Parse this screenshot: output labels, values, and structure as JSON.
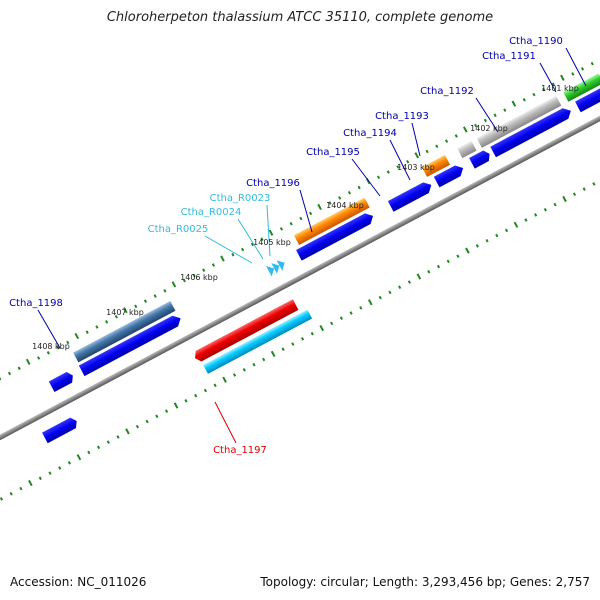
{
  "title": "Chloroherpeton thalassium ATCC 35110, complete genome",
  "footer": {
    "accession": "Accession: NC_011026",
    "summary": "Topology: circular; Length: 3,293,456 bp; Genes: 2,757"
  },
  "ticks": [
    {
      "label": "1401 kbp"
    },
    {
      "label": "1402 kbp"
    },
    {
      "label": "1403 kbp"
    },
    {
      "label": "1404 kbp"
    },
    {
      "label": "1405 kbp"
    },
    {
      "label": "1406 kbp"
    },
    {
      "label": "1407 kbp"
    },
    {
      "label": "1408 kbp"
    }
  ],
  "features": [
    {
      "label": "Ctha_1190",
      "color": "#0000aa"
    },
    {
      "label": "Ctha_1191",
      "color": "#0000aa"
    },
    {
      "label": "Ctha_1192",
      "color": "#0000aa"
    },
    {
      "label": "Ctha_1193",
      "color": "#0000aa"
    },
    {
      "label": "Ctha_1194",
      "color": "#0000aa"
    },
    {
      "label": "Ctha_1195",
      "color": "#0000aa"
    },
    {
      "label": "Ctha_1196",
      "color": "#0000aa"
    },
    {
      "label": "Ctha_R0023",
      "color": "#33bbdd"
    },
    {
      "label": "Ctha_R0024",
      "color": "#33bbdd"
    },
    {
      "label": "Ctha_R0025",
      "color": "#33bbdd"
    },
    {
      "label": "Ctha_1197",
      "color": "#dd0000"
    },
    {
      "label": "Ctha_1198",
      "color": "#0000aa"
    }
  ],
  "colors": {
    "cds_track": "#0000ee",
    "backbone": "#888888",
    "tick_marks": "#228822",
    "highlight_red": "#ee0000",
    "highlight_cyan": "#00ccff",
    "highlight_orange": "#ff8800",
    "highlight_steel": "#4477aa",
    "highlight_grey": "#aaaaaa",
    "highlight_green": "#33cc33"
  }
}
